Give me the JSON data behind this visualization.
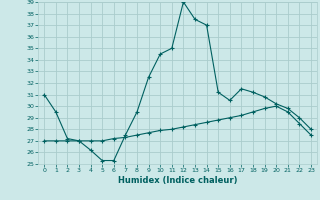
{
  "xlabel": "Humidex (Indice chaleur)",
  "background_color": "#cce8e8",
  "grid_color": "#aacccc",
  "line_color": "#006060",
  "xlim": [
    -0.5,
    23.5
  ],
  "ylim": [
    25,
    39
  ],
  "xticks": [
    0,
    1,
    2,
    3,
    4,
    5,
    6,
    7,
    8,
    9,
    10,
    11,
    12,
    13,
    14,
    15,
    16,
    17,
    18,
    19,
    20,
    21,
    22,
    23
  ],
  "yticks": [
    25,
    26,
    27,
    28,
    29,
    30,
    31,
    32,
    33,
    34,
    35,
    36,
    37,
    38,
    39
  ],
  "line1_x": [
    0,
    1,
    2,
    3,
    4,
    5,
    6,
    7,
    8,
    9,
    10,
    11,
    12,
    13,
    14,
    15,
    16,
    17,
    18,
    19,
    20,
    21,
    22,
    23
  ],
  "line1_y": [
    31.0,
    29.5,
    27.2,
    27.0,
    26.2,
    25.3,
    25.3,
    27.5,
    29.5,
    32.5,
    34.5,
    35.0,
    39.0,
    37.5,
    37.0,
    31.2,
    30.5,
    31.5,
    31.2,
    30.8,
    30.2,
    29.8,
    29.0,
    28.0
  ],
  "line2_x": [
    0,
    1,
    2,
    3,
    4,
    5,
    6,
    7,
    8,
    9,
    10,
    11,
    12,
    13,
    14,
    15,
    16,
    17,
    18,
    19,
    20,
    21,
    22,
    23
  ],
  "line2_y": [
    27.0,
    27.0,
    27.0,
    27.0,
    27.0,
    27.0,
    27.2,
    27.3,
    27.5,
    27.7,
    27.9,
    28.0,
    28.2,
    28.4,
    28.6,
    28.8,
    29.0,
    29.2,
    29.5,
    29.8,
    30.0,
    29.5,
    28.5,
    27.5
  ]
}
